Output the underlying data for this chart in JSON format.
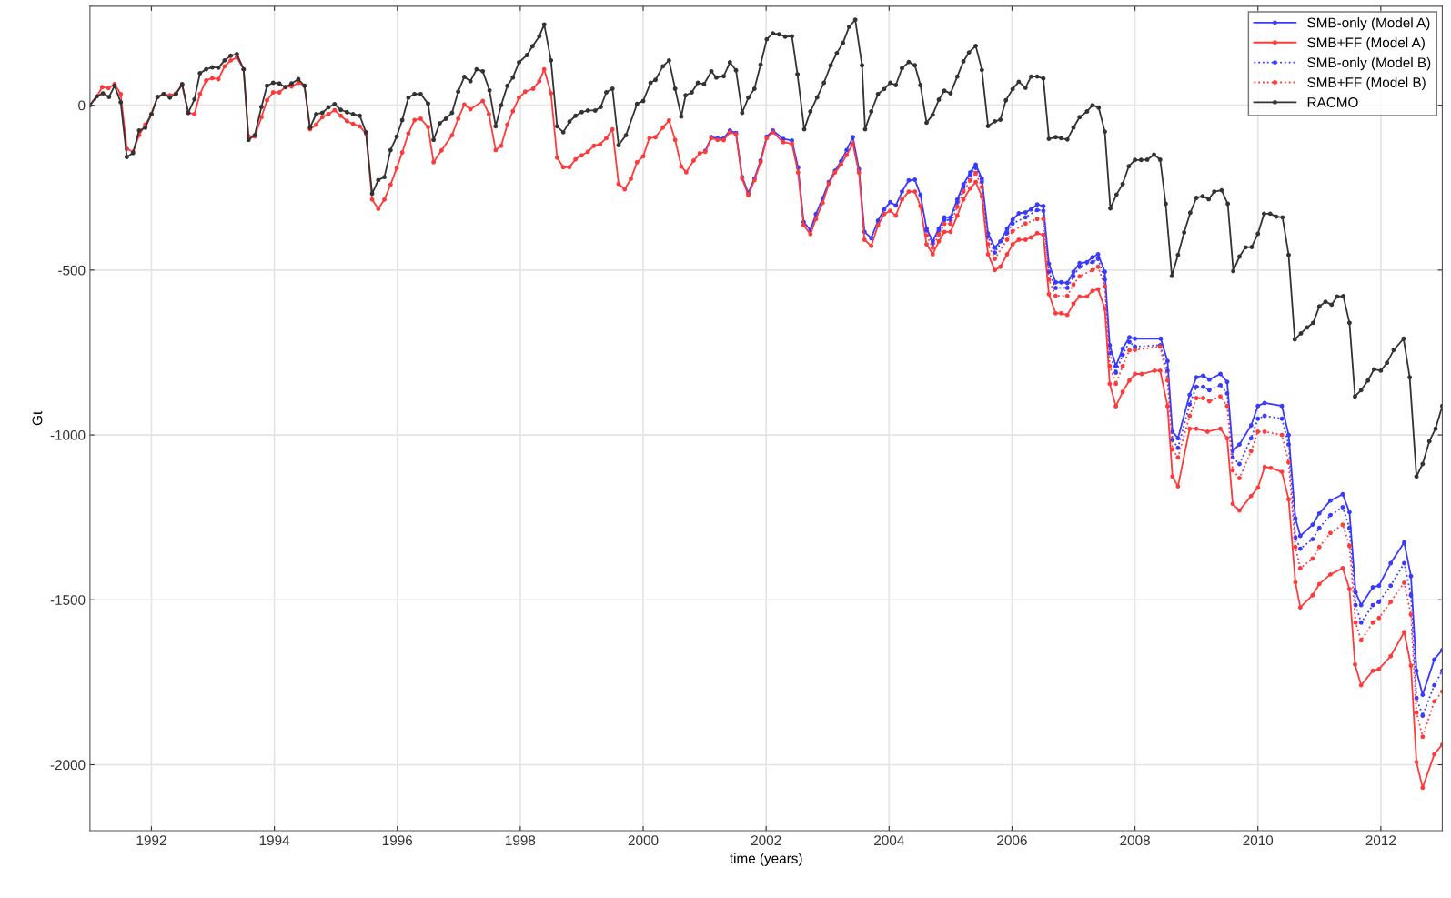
{
  "chart_data": {
    "type": "line",
    "xlabel": "time (years)",
    "ylabel": "Gt",
    "xlim": [
      1991,
      2013
    ],
    "ylim": [
      -2200,
      300
    ],
    "xticks": [
      1992,
      1994,
      1996,
      1998,
      2000,
      2002,
      2004,
      2006,
      2008,
      2010,
      2012
    ],
    "yticks": [
      -2000,
      -1500,
      -1000,
      -500,
      0
    ],
    "grid": true,
    "legend": "top right",
    "marker": "circle",
    "series": [
      {
        "name": "SMB-only (Model A)",
        "color": "#3a3aff",
        "line_style": "solid",
        "x": [
          2001.01,
          2001.11,
          2001.21,
          2001.31,
          2001.41,
          2001.51,
          2001.61,
          2001.71,
          2001.81,
          2001.91,
          2002.01,
          2002.11,
          2002.28,
          2002.42,
          2002.52,
          2002.61,
          2002.72,
          2002.81,
          2002.92,
          2003.02,
          2003.12,
          2003.22,
          2003.31,
          2003.41,
          2003.51,
          2003.6,
          2003.71,
          2003.82,
          2003.92,
          2004.02,
          2004.11,
          2004.21,
          2004.32,
          2004.42,
          2004.51,
          2004.61,
          2004.71,
          2004.81,
          2004.9,
          2005.0,
          2005.11,
          2005.21,
          2005.32,
          2005.41,
          2005.51,
          2005.61,
          2005.72,
          2005.81,
          2005.92,
          2006.01,
          2006.11,
          2006.22,
          2006.31,
          2006.41,
          2006.51,
          2006.6,
          2006.71,
          2006.8,
          2006.9,
          2007.0,
          2007.1,
          2007.22,
          2007.31,
          2007.4,
          2007.51,
          2007.59,
          2007.69,
          2007.8,
          2007.91,
          2008.0,
          2008.42,
          2008.53,
          2008.61,
          2008.7,
          2008.89,
          2009.0,
          2009.11,
          2009.21,
          2009.39,
          2009.5,
          2009.59,
          2009.7,
          2009.89,
          2010.0,
          2010.11,
          2010.39,
          2010.5,
          2010.61,
          2010.69,
          2010.89,
          2011.0,
          2011.18,
          2011.38,
          2011.49,
          2011.59,
          2011.68,
          2011.87,
          2011.97,
          2012.16,
          2012.38,
          2012.49,
          2012.58,
          2012.68,
          2012.87,
          2013.0
        ],
        "values": [
          -138,
          -97,
          -100,
          -100,
          -77,
          -84,
          -218,
          -266,
          -222,
          -168,
          -95,
          -77,
          -102,
          -107,
          -189,
          -354,
          -379,
          -330,
          -282,
          -233,
          -199,
          -170,
          -136,
          -97,
          -194,
          -384,
          -403,
          -350,
          -316,
          -294,
          -304,
          -262,
          -228,
          -226,
          -272,
          -374,
          -413,
          -374,
          -340,
          -340,
          -286,
          -240,
          -204,
          -180,
          -223,
          -389,
          -432,
          -413,
          -374,
          -347,
          -328,
          -325,
          -316,
          -301,
          -306,
          -481,
          -537,
          -537,
          -539,
          -505,
          -479,
          -476,
          -461,
          -452,
          -505,
          -728,
          -791,
          -738,
          -704,
          -708,
          -708,
          -776,
          -990,
          -1010,
          -878,
          -825,
          -820,
          -832,
          -815,
          -839,
          -1049,
          -1029,
          -971,
          -912,
          -903,
          -912,
          -1000,
          -1253,
          -1306,
          -1272,
          -1238,
          -1199,
          -1180,
          -1234,
          -1477,
          -1516,
          -1462,
          -1457,
          -1389,
          -1326,
          -1428,
          -1715,
          -1788,
          -1681,
          -1652
        ]
      },
      {
        "name": "SMB+FF (Model A)",
        "color": "#ff3a3a",
        "line_style": "solid",
        "x": [
          1991.0,
          1991.11,
          1991.2,
          1991.3,
          1991.4,
          1991.5,
          1991.6,
          1991.7,
          1991.8,
          1991.9,
          1992.0,
          1992.1,
          1992.2,
          1992.3,
          1992.4,
          1992.5,
          1992.6,
          1992.7,
          1992.79,
          1992.89,
          1992.99,
          1993.09,
          1993.19,
          1993.29,
          1993.39,
          1993.5,
          1993.58,
          1993.68,
          1993.79,
          1993.88,
          1993.98,
          1994.08,
          1994.18,
          1994.28,
          1994.39,
          1994.49,
          1994.58,
          1994.68,
          1994.78,
          1994.88,
          1994.98,
          1995.08,
          1995.18,
          1995.28,
          1995.39,
          1995.49,
          1995.59,
          1995.69,
          1995.79,
          1995.89,
          1995.99,
          1996.08,
          1996.18,
          1996.28,
          1996.38,
          1996.5,
          1996.59,
          1996.72,
          1996.89,
          1996.99,
          1997.09,
          1997.19,
          1997.39,
          1997.49,
          1997.6,
          1997.69,
          1997.79,
          1997.88,
          1997.98,
          1998.08,
          1998.21,
          1998.31,
          1998.39,
          1998.5,
          1998.6,
          1998.7,
          1998.8,
          1998.9,
          1999.0,
          1999.1,
          1999.2,
          1999.3,
          1999.4,
          1999.5,
          1999.6,
          1999.7,
          1999.8,
          1999.9,
          2000.0,
          2000.1,
          2000.2,
          2000.32,
          2000.42,
          2000.52,
          2000.62,
          2000.7,
          2000.82,
          2000.92,
          2001.01,
          2001.11,
          2001.21,
          2001.31,
          2001.41,
          2001.51,
          2001.61,
          2001.71,
          2001.81,
          2001.91,
          2002.01,
          2002.11,
          2002.28,
          2002.42,
          2002.52,
          2002.61,
          2002.72,
          2002.81,
          2002.92,
          2003.02,
          2003.12,
          2003.22,
          2003.31,
          2003.41,
          2003.51,
          2003.6,
          2003.71,
          2003.82,
          2003.92,
          2004.02,
          2004.11,
          2004.21,
          2004.32,
          2004.42,
          2004.51,
          2004.61,
          2004.71,
          2004.81,
          2004.9,
          2005.0,
          2005.11,
          2005.21,
          2005.32,
          2005.41,
          2005.51,
          2005.61,
          2005.72,
          2005.81,
          2005.92,
          2006.01,
          2006.11,
          2006.22,
          2006.31,
          2006.41,
          2006.51,
          2006.6,
          2006.71,
          2006.8,
          2006.9,
          2007.0,
          2007.1,
          2007.22,
          2007.31,
          2007.4,
          2007.51,
          2007.59,
          2007.69,
          2007.8,
          2007.91,
          2008.0,
          2008.11,
          2008.32,
          2008.41,
          2008.53,
          2008.61,
          2008.7,
          2008.89,
          2009.0,
          2009.18,
          2009.39,
          2009.5,
          2009.59,
          2009.7,
          2009.89,
          2010.0,
          2010.11,
          2010.21,
          2010.39,
          2010.5,
          2010.61,
          2010.69,
          2010.89,
          2011.0,
          2011.18,
          2011.38,
          2011.49,
          2011.58,
          2011.68,
          2011.87,
          2011.97,
          2012.16,
          2012.38,
          2012.49,
          2012.58,
          2012.68,
          2012.87,
          2013.0
        ],
        "values": [
          0,
          27,
          55,
          52,
          64,
          34,
          -132,
          -141,
          -91,
          -59,
          -27,
          25,
          34,
          30,
          36,
          61,
          -23,
          -27,
          34,
          75,
          82,
          79,
          118,
          136,
          145,
          109,
          -94,
          -95,
          -36,
          15,
          39,
          39,
          55,
          57,
          68,
          59,
          -73,
          -59,
          -36,
          -27,
          -15,
          -32,
          -48,
          -57,
          -64,
          -86,
          -286,
          -314,
          -286,
          -241,
          -191,
          -143,
          -86,
          -45,
          -41,
          -66,
          -173,
          -137,
          -91,
          -41,
          2,
          -12,
          13,
          -27,
          -136,
          -123,
          -59,
          -18,
          23,
          41,
          50,
          73,
          109,
          36,
          -159,
          -188,
          -188,
          -164,
          -152,
          -141,
          -123,
          -118,
          -100,
          -73,
          -239,
          -255,
          -223,
          -173,
          -155,
          -100,
          -97,
          -68,
          -46,
          -105,
          -186,
          -203,
          -168,
          -146,
          -141,
          -100,
          -105,
          -106,
          -82,
          -88,
          -223,
          -273,
          -227,
          -173,
          -100,
          -82,
          -112,
          -117,
          -204,
          -364,
          -391,
          -345,
          -296,
          -238,
          -204,
          -180,
          -151,
          -117,
          -204,
          -408,
          -427,
          -364,
          -330,
          -320,
          -335,
          -286,
          -262,
          -262,
          -306,
          -422,
          -452,
          -413,
          -384,
          -384,
          -335,
          -286,
          -252,
          -233,
          -277,
          -452,
          -500,
          -490,
          -452,
          -422,
          -408,
          -408,
          -401,
          -388,
          -393,
          -573,
          -631,
          -631,
          -636,
          -602,
          -580,
          -580,
          -563,
          -558,
          -617,
          -845,
          -913,
          -869,
          -835,
          -815,
          -815,
          -805,
          -805,
          -912,
          -1126,
          -1156,
          -981,
          -981,
          -990,
          -981,
          -1010,
          -1209,
          -1229,
          -1185,
          -1160,
          -1097,
          -1100,
          -1112,
          -1195,
          -1447,
          -1523,
          -1486,
          -1452,
          -1423,
          -1404,
          -1467,
          -1696,
          -1759,
          -1715,
          -1710,
          -1671,
          -1598,
          -1700,
          -1992,
          -2070,
          -1968,
          -1939
        ]
      },
      {
        "name": "SMB-only (Model B)",
        "color": "#3a3aff",
        "line_style": "dotted",
        "x": [
          2004.61,
          2004.71,
          2004.81,
          2004.9,
          2005.0,
          2005.11,
          2005.21,
          2005.32,
          2005.41,
          2005.51,
          2005.61,
          2005.72,
          2005.92,
          2006.01,
          2006.22,
          2006.41,
          2006.51,
          2006.6,
          2006.71,
          2006.9,
          2007.0,
          2007.1,
          2007.31,
          2007.4,
          2007.51,
          2007.59,
          2007.69,
          2007.8,
          2007.91,
          2008.0,
          2008.41,
          2008.53,
          2008.61,
          2008.7,
          2008.89,
          2009.0,
          2009.11,
          2009.21,
          2009.39,
          2009.5,
          2009.59,
          2009.7,
          2009.89,
          2010.0,
          2010.11,
          2010.39,
          2010.5,
          2010.61,
          2010.69,
          2010.89,
          2011.0,
          2011.18,
          2011.38,
          2011.49,
          2011.59,
          2011.68,
          2011.87,
          2011.97,
          2012.16,
          2012.38,
          2012.49,
          2012.58,
          2012.68,
          2012.87,
          2013.0
        ],
        "values": [
          -380,
          -420,
          -380,
          -348,
          -348,
          -295,
          -248,
          -212,
          -190,
          -232,
          -398,
          -447,
          -388,
          -359,
          -340,
          -318,
          -320,
          -505,
          -554,
          -554,
          -519,
          -490,
          -476,
          -466,
          -529,
          -752,
          -811,
          -757,
          -718,
          -732,
          -728,
          -805,
          -1015,
          -1039,
          -907,
          -854,
          -854,
          -864,
          -849,
          -874,
          -1068,
          -1088,
          -1010,
          -951,
          -942,
          -951,
          -1029,
          -1311,
          -1345,
          -1316,
          -1282,
          -1243,
          -1219,
          -1282,
          -1516,
          -1569,
          -1516,
          -1506,
          -1457,
          -1389,
          -1486,
          -1798,
          -1851,
          -1759,
          -1715
        ]
      },
      {
        "name": "SMB+FF (Model B)",
        "color": "#ff3a3a",
        "line_style": "dotted",
        "x": [
          2004.61,
          2004.71,
          2004.81,
          2004.9,
          2005.0,
          2005.11,
          2005.21,
          2005.32,
          2005.41,
          2005.51,
          2005.61,
          2005.72,
          2005.92,
          2006.01,
          2006.22,
          2006.41,
          2006.51,
          2006.6,
          2006.71,
          2006.9,
          2007.0,
          2007.1,
          2007.31,
          2007.4,
          2007.51,
          2007.59,
          2007.69,
          2007.8,
          2007.91,
          2008.0,
          2008.41,
          2008.53,
          2008.61,
          2008.7,
          2008.89,
          2009.0,
          2009.11,
          2009.21,
          2009.39,
          2009.5,
          2009.59,
          2009.7,
          2009.89,
          2010.0,
          2010.11,
          2010.39,
          2010.5,
          2010.61,
          2010.69,
          2010.89,
          2011.0,
          2011.18,
          2011.38,
          2011.49,
          2011.59,
          2011.68,
          2011.87,
          2011.97,
          2012.16,
          2012.38,
          2012.49,
          2012.58,
          2012.68,
          2012.87,
          2013.0
        ],
        "values": [
          -395,
          -432,
          -392,
          -360,
          -360,
          -308,
          -262,
          -228,
          -206,
          -248,
          -422,
          -466,
          -408,
          -382,
          -359,
          -345,
          -345,
          -529,
          -578,
          -578,
          -544,
          -519,
          -500,
          -490,
          -549,
          -791,
          -845,
          -791,
          -743,
          -742,
          -732,
          -835,
          -1044,
          -1068,
          -942,
          -888,
          -888,
          -898,
          -883,
          -912,
          -1107,
          -1131,
          -1049,
          -990,
          -990,
          -1000,
          -1083,
          -1340,
          -1404,
          -1375,
          -1340,
          -1297,
          -1272,
          -1336,
          -1569,
          -1623,
          -1569,
          -1555,
          -1506,
          -1448,
          -1545,
          -1842,
          -1915,
          -1808,
          -1778
        ]
      },
      {
        "name": "RACMO",
        "color": "#333333",
        "line_style": "solid",
        "x": [
          1991.0,
          1991.11,
          1991.21,
          1991.31,
          1991.4,
          1991.5,
          1991.6,
          1991.7,
          1991.8,
          1991.9,
          1992.0,
          1992.1,
          1992.2,
          1992.3,
          1992.4,
          1992.5,
          1992.6,
          1992.7,
          1992.79,
          1992.89,
          1992.99,
          1993.09,
          1993.19,
          1993.29,
          1993.39,
          1993.5,
          1993.58,
          1993.68,
          1993.79,
          1993.88,
          1993.98,
          1994.08,
          1994.18,
          1994.28,
          1994.39,
          1994.49,
          1994.58,
          1994.68,
          1994.78,
          1994.88,
          1994.98,
          1995.08,
          1995.18,
          1995.28,
          1995.39,
          1995.49,
          1995.59,
          1995.69,
          1995.79,
          1995.89,
          1995.99,
          1996.08,
          1996.18,
          1996.28,
          1996.38,
          1996.5,
          1996.59,
          1996.69,
          1996.79,
          1996.89,
          1996.99,
          1997.09,
          1997.19,
          1997.29,
          1997.39,
          1997.5,
          1997.6,
          1997.69,
          1997.79,
          1997.88,
          1997.98,
          1998.11,
          1998.2,
          1998.31,
          1998.39,
          1998.5,
          1998.6,
          1998.7,
          1998.8,
          1998.9,
          1999.0,
          1999.1,
          1999.22,
          1999.31,
          1999.4,
          1999.5,
          1999.6,
          1999.72,
          1999.9,
          2000.0,
          2000.12,
          2000.2,
          2000.32,
          2000.42,
          2000.52,
          2000.62,
          2000.69,
          2000.79,
          2000.89,
          2000.99,
          2001.11,
          2001.19,
          2001.31,
          2001.41,
          2001.51,
          2001.61,
          2001.71,
          2001.81,
          2001.91,
          2002.01,
          2002.11,
          2002.21,
          2002.31,
          2002.42,
          2002.51,
          2002.62,
          2002.72,
          2002.83,
          2002.94,
          2003.05,
          2003.15,
          2003.25,
          2003.35,
          2003.45,
          2003.56,
          2003.61,
          2003.71,
          2003.82,
          2003.92,
          2004.02,
          2004.11,
          2004.21,
          2004.32,
          2004.42,
          2004.51,
          2004.61,
          2004.71,
          2004.81,
          2004.9,
          2005.0,
          2005.11,
          2005.21,
          2005.3,
          2005.41,
          2005.51,
          2005.61,
          2005.72,
          2005.81,
          2005.9,
          2006.01,
          2006.11,
          2006.22,
          2006.31,
          2006.41,
          2006.51,
          2006.6,
          2006.71,
          2006.8,
          2006.9,
          2007.0,
          2007.1,
          2007.22,
          2007.31,
          2007.41,
          2007.51,
          2007.6,
          2007.7,
          2007.8,
          2007.9,
          2008.0,
          2008.1,
          2008.2,
          2008.31,
          2008.41,
          2008.5,
          2008.6,
          2008.7,
          2008.8,
          2008.9,
          2009.0,
          2009.1,
          2009.2,
          2009.29,
          2009.41,
          2009.51,
          2009.6,
          2009.7,
          2009.8,
          2009.9,
          2010.0,
          2010.1,
          2010.2,
          2010.3,
          2010.4,
          2010.5,
          2010.6,
          2010.7,
          2010.8,
          2010.9,
          2011.0,
          2011.1,
          2011.2,
          2011.29,
          2011.39,
          2011.49,
          2011.58,
          2011.68,
          2011.79,
          2011.89,
          2012.0,
          2012.1,
          2012.21,
          2012.37,
          2012.47,
          2012.58,
          2012.68,
          2012.79,
          2012.89,
          2013.0
        ],
        "values": [
          0,
          27,
          36,
          25,
          59,
          9,
          -157,
          -145,
          -77,
          -68,
          -27,
          25,
          34,
          23,
          34,
          64,
          -23,
          18,
          97,
          109,
          115,
          114,
          136,
          150,
          155,
          109,
          -105,
          -91,
          -5,
          59,
          68,
          66,
          55,
          66,
          79,
          59,
          -68,
          -27,
          -23,
          -6,
          3,
          -14,
          -21,
          -27,
          -32,
          -82,
          -268,
          -227,
          -218,
          -136,
          -95,
          -45,
          23,
          34,
          34,
          5,
          -105,
          -55,
          -41,
          -23,
          41,
          86,
          73,
          109,
          103,
          45,
          -64,
          0,
          59,
          84,
          130,
          152,
          179,
          209,
          245,
          136,
          -64,
          -82,
          -50,
          -32,
          -21,
          -16,
          -16,
          -5,
          39,
          50,
          -121,
          -91,
          4,
          13,
          68,
          77,
          118,
          136,
          50,
          -34,
          30,
          39,
          68,
          64,
          103,
          84,
          88,
          130,
          106,
          -23,
          23,
          50,
          123,
          200,
          218,
          215,
          208,
          209,
          94,
          -73,
          -19,
          24,
          68,
          121,
          158,
          189,
          238,
          259,
          121,
          -73,
          -19,
          34,
          49,
          68,
          61,
          112,
          131,
          121,
          61,
          -53,
          -29,
          17,
          44,
          36,
          87,
          133,
          160,
          180,
          107,
          -63,
          -49,
          -44,
          15,
          49,
          71,
          53,
          87,
          87,
          81,
          -102,
          -97,
          -100,
          -104,
          -68,
          -36,
          -19,
          0,
          -7,
          -80,
          -313,
          -271,
          -239,
          -185,
          -166,
          -166,
          -165,
          -150,
          -165,
          -299,
          -518,
          -454,
          -386,
          -326,
          -281,
          -276,
          -285,
          -262,
          -258,
          -299,
          -503,
          -459,
          -431,
          -430,
          -390,
          -329,
          -329,
          -338,
          -340,
          -454,
          -710,
          -692,
          -674,
          -660,
          -610,
          -596,
          -605,
          -580,
          -579,
          -660,
          -883,
          -864,
          -835,
          -801,
          -805,
          -781,
          -742,
          -708,
          -825,
          -1126,
          -1088,
          -1019,
          -981,
          -912
        ]
      }
    ]
  }
}
